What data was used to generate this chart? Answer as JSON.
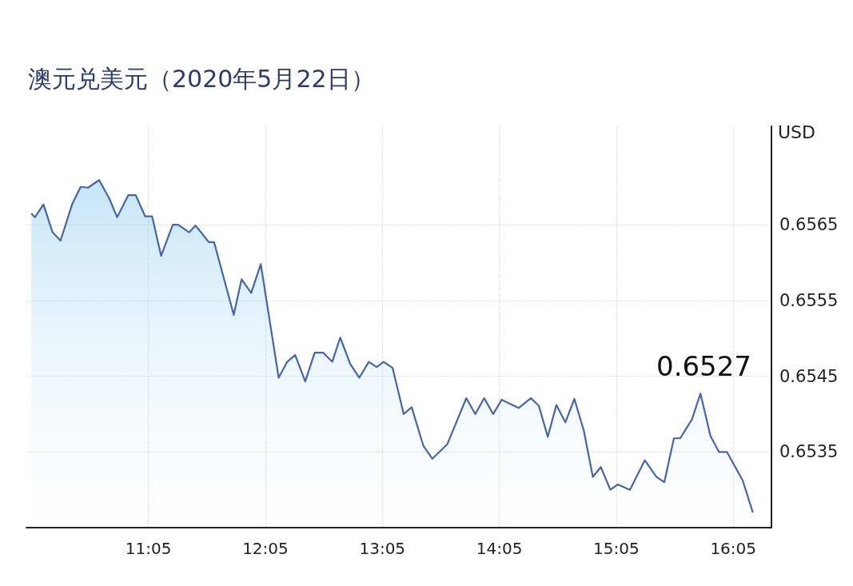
{
  "chart_data": {
    "type": "area",
    "title": "澳元兑美元（2020年5月22日）",
    "ylabel": "USD",
    "x": [
      10.082,
      10.114,
      10.186,
      10.264,
      10.332,
      10.431,
      10.504,
      10.567,
      10.662,
      10.748,
      10.816,
      10.911,
      10.975,
      11.056,
      11.115,
      11.192,
      11.292,
      11.337,
      11.432,
      11.486,
      11.6,
      11.645,
      11.813,
      11.88,
      11.962,
      12.044,
      12.197,
      12.27,
      12.338,
      12.424,
      12.505,
      12.578,
      12.655,
      12.723,
      12.809,
      12.886,
      12.968,
      13.035,
      13.094,
      13.171,
      13.266,
      13.334,
      13.434,
      13.511,
      13.638,
      13.801,
      13.878,
      13.954,
      14.031,
      14.104,
      14.181,
      14.249,
      14.353,
      14.421,
      14.498,
      14.571,
      14.648,
      14.725,
      14.806,
      14.883,
      14.951,
      15.033,
      15.096,
      15.2,
      15.327,
      15.427,
      15.494,
      15.576,
      15.63,
      15.73,
      15.803,
      15.889,
      15.961,
      16.029,
      16.165,
      16.251
    ],
    "values": [
      0.65665,
      0.6566,
      0.65677,
      0.6564,
      0.65629,
      0.65677,
      0.657,
      0.65699,
      0.65709,
      0.65685,
      0.6566,
      0.65689,
      0.65689,
      0.65661,
      0.65661,
      0.65609,
      0.6565,
      0.6565,
      0.6564,
      0.65649,
      0.65627,
      0.65627,
      0.65531,
      0.65578,
      0.6556,
      0.65598,
      0.65448,
      0.65469,
      0.65478,
      0.65443,
      0.65481,
      0.65481,
      0.65469,
      0.65501,
      0.65466,
      0.65448,
      0.65469,
      0.65462,
      0.65469,
      0.65461,
      0.654,
      0.65409,
      0.65358,
      0.65341,
      0.6536,
      0.65421,
      0.654,
      0.65421,
      0.654,
      0.65419,
      0.65413,
      0.65408,
      0.65421,
      0.65411,
      0.6537,
      0.65412,
      0.65389,
      0.6542,
      0.65378,
      0.65317,
      0.6533,
      0.653,
      0.65307,
      0.653,
      0.65339,
      0.65317,
      0.6531,
      0.65368,
      0.65368,
      0.65393,
      0.65427,
      0.65371,
      0.6535,
      0.6535,
      0.65312,
      0.6527
    ],
    "color": "#4565ad",
    "marker": "none",
    "xlim": [
      10.04,
      16.41
    ],
    "xticks": [
      {
        "value": 11.0833,
        "label": "11:05"
      },
      {
        "value": 12.0833,
        "label": "12:05"
      },
      {
        "value": 13.0833,
        "label": "13:05"
      },
      {
        "value": 14.0833,
        "label": "14:05"
      },
      {
        "value": 15.0833,
        "label": "15:05"
      },
      {
        "value": 16.0833,
        "label": "16:05"
      }
    ],
    "ylim": [
      0.6525,
      0.6578
    ],
    "yticks": [
      0.6535,
      0.6545,
      0.6555,
      0.6565
    ],
    "grid": true,
    "annotations": [
      "0.6527"
    ]
  }
}
